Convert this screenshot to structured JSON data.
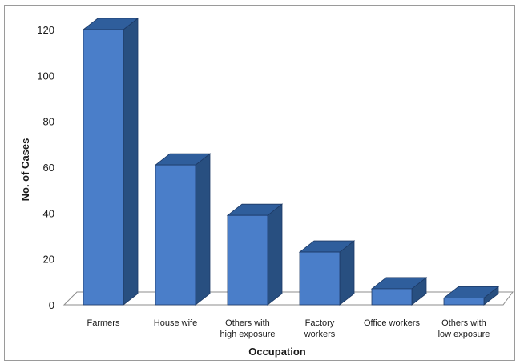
{
  "chart_data": {
    "type": "bar",
    "style": "3d-column",
    "categories": [
      [
        "Farmers"
      ],
      [
        "House wife"
      ],
      [
        "Others with",
        "high exposure"
      ],
      [
        "Factory",
        "workers"
      ],
      [
        "Office workers"
      ],
      [
        "Others with",
        "low exposure"
      ]
    ],
    "values": [
      120,
      61,
      39,
      23,
      7,
      3
    ],
    "xlabel": "Occupation",
    "ylabel": "No. of Cases",
    "ylim": [
      0,
      120
    ],
    "yticks": [
      0,
      20,
      40,
      60,
      80,
      100,
      120
    ],
    "grid": false,
    "legend": "none",
    "colors": {
      "bar_front": "#4a7ec9",
      "bar_top": "#2f5e9c",
      "bar_side": "#284f80",
      "bar_edge": "#1d3a66",
      "floor": "#ffffff",
      "floor_edge": "#8c8c8c"
    }
  }
}
